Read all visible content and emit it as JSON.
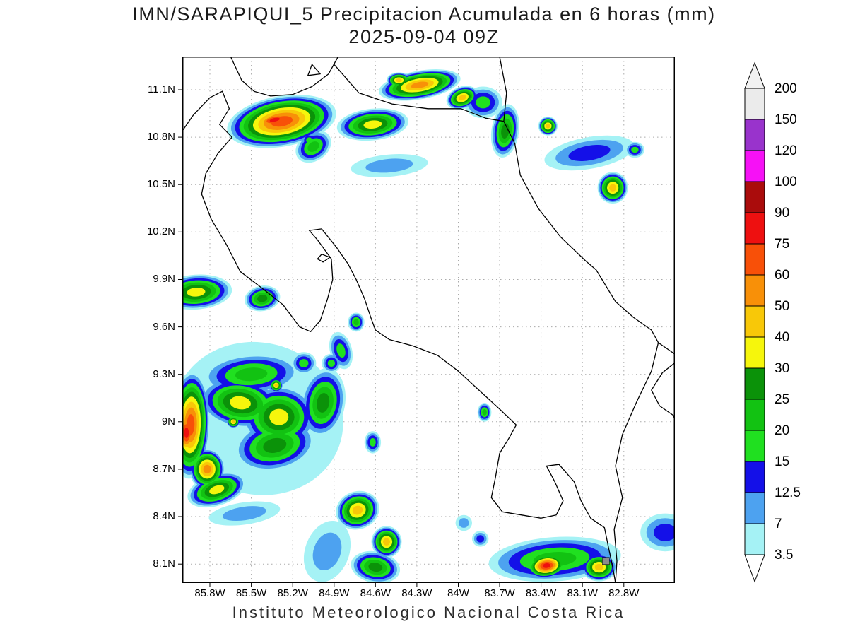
{
  "chart_data": {
    "type": "heatmap",
    "title": "IMN/SARAPIQUI_5 Precipitacion Acumulada en 6 horas (mm)",
    "subtitle": "2025-09-04 09Z",
    "model": "IMN/SARAPIQUI_5",
    "variable": "Precipitacion Acumulada en 6 horas",
    "units": "mm",
    "valid_time": "2025-09-04 09Z",
    "footer": "Instituto Meteorologico Nacional Costa Rica",
    "grid": {
      "show": true,
      "style": "dotted"
    },
    "legend_position": "right",
    "x_axis": {
      "ticks": [
        "85.8W",
        "85.5W",
        "85.2W",
        "84.9W",
        "84.6W",
        "84.3W",
        "84W",
        "83.7W",
        "83.4W",
        "83.1W",
        "82.8W"
      ],
      "values": [
        -85.8,
        -85.5,
        -85.2,
        -84.9,
        -84.6,
        -84.3,
        -84.0,
        -83.7,
        -83.4,
        -83.1,
        -82.8
      ],
      "range": [
        -86.0,
        -82.43
      ]
    },
    "y_axis": {
      "ticks": [
        "11.1N",
        "10.8N",
        "10.5N",
        "10.2N",
        "9.9N",
        "9.6N",
        "9.3N",
        "9N",
        "8.7N",
        "8.4N",
        "8.1N"
      ],
      "values": [
        11.1,
        10.8,
        10.5,
        10.2,
        9.9,
        9.6,
        9.3,
        9.0,
        8.7,
        8.4,
        8.1
      ],
      "range": [
        7.98,
        11.31
      ]
    },
    "levels": [
      3.5,
      7,
      12.5,
      15,
      20,
      25,
      30,
      40,
      50,
      60,
      75,
      90,
      100,
      120,
      150,
      200
    ],
    "level_labels": [
      "3.5",
      "7",
      "12.5",
      "15",
      "20",
      "25",
      "30",
      "40",
      "50",
      "60",
      "75",
      "90",
      "100",
      "120",
      "150",
      "200"
    ],
    "palette": [
      "#a5f2f5",
      "#4da2f0",
      "#1410e8",
      "#20e020",
      "#12c212",
      "#0b9209",
      "#f6f60c",
      "#f8c808",
      "#f89008",
      "#f85008",
      "#ee1010",
      "#aa0c0c",
      "#f611f6",
      "#9933cc",
      "#ebebeb"
    ],
    "overflow_color": "#f2f2f2",
    "underflow_color": "#ffffff",
    "isolated_cell": {
      "lon": -82.93,
      "lat": 8.12,
      "band": "150-200",
      "color": "#8c8c8c"
    },
    "features": [
      {
        "lon": -85.28,
        "lat": 10.9,
        "rx": 0.4,
        "ry": 0.16,
        "rot": -10,
        "max_mm": 60
      },
      {
        "lon": -85.33,
        "lat": 10.91,
        "rx": 0.2,
        "ry": 0.06,
        "rot": -12,
        "max_mm": 75
      },
      {
        "lon": -85.05,
        "lat": 10.74,
        "rx": 0.14,
        "ry": 0.09,
        "rot": -35,
        "max_mm": 20
      },
      {
        "lon": -85.08,
        "lat": 10.78,
        "rx": 0.06,
        "ry": 0.05,
        "rot": 0,
        "max_mm": 15
      },
      {
        "lon": -84.62,
        "lat": 10.88,
        "rx": 0.26,
        "ry": 0.1,
        "rot": -6,
        "max_mm": 30
      },
      {
        "lon": -84.5,
        "lat": 10.62,
        "rx": 0.28,
        "ry": 0.07,
        "rot": -5,
        "max_mm": 12
      },
      {
        "lon": -84.28,
        "lat": 11.13,
        "rx": 0.3,
        "ry": 0.09,
        "rot": -10,
        "max_mm": 50
      },
      {
        "lon": -84.43,
        "lat": 11.16,
        "rx": 0.09,
        "ry": 0.05,
        "rot": 0,
        "max_mm": 40
      },
      {
        "lon": -83.97,
        "lat": 11.05,
        "rx": 0.12,
        "ry": 0.07,
        "rot": -20,
        "max_mm": 40
      },
      {
        "lon": -83.82,
        "lat": 11.02,
        "rx": 0.14,
        "ry": 0.1,
        "rot": 0,
        "max_mm": 15
      },
      {
        "lon": -83.66,
        "lat": 10.84,
        "rx": 0.1,
        "ry": 0.17,
        "rot": 8,
        "max_mm": 25
      },
      {
        "lon": -83.35,
        "lat": 10.87,
        "rx": 0.07,
        "ry": 0.06,
        "rot": 0,
        "max_mm": 40
      },
      {
        "lon": -83.05,
        "lat": 10.7,
        "rx": 0.33,
        "ry": 0.1,
        "rot": -10,
        "max_mm": 13
      },
      {
        "lon": -82.72,
        "lat": 10.72,
        "rx": 0.07,
        "ry": 0.05,
        "rot": 0,
        "max_mm": 15
      },
      {
        "lon": -82.88,
        "lat": 10.48,
        "rx": 0.11,
        "ry": 0.1,
        "rot": 0,
        "max_mm": 40
      },
      {
        "lon": -85.9,
        "lat": 9.82,
        "rx": 0.26,
        "ry": 0.11,
        "rot": -4,
        "max_mm": 30
      },
      {
        "lon": -85.42,
        "lat": 9.78,
        "rx": 0.13,
        "ry": 0.08,
        "rot": -10,
        "max_mm": 25
      },
      {
        "lon": -84.74,
        "lat": 9.63,
        "rx": 0.06,
        "ry": 0.06,
        "rot": 0,
        "max_mm": 20
      },
      {
        "lon": -85.45,
        "lat": 9.02,
        "rx": 0.62,
        "ry": 0.48,
        "rot": 15,
        "max_mm": 5
      },
      {
        "lon": -85.5,
        "lat": 9.3,
        "rx": 0.36,
        "ry": 0.13,
        "rot": -4,
        "max_mm": 20
      },
      {
        "lon": -85.12,
        "lat": 9.37,
        "rx": 0.09,
        "ry": 0.07,
        "rot": 0,
        "max_mm": 15
      },
      {
        "lon": -84.92,
        "lat": 9.37,
        "rx": 0.07,
        "ry": 0.06,
        "rot": 0,
        "max_mm": 15
      },
      {
        "lon": -84.85,
        "lat": 9.45,
        "rx": 0.08,
        "ry": 0.12,
        "rot": -15,
        "max_mm": 15
      },
      {
        "lon": -85.58,
        "lat": 9.12,
        "rx": 0.3,
        "ry": 0.16,
        "rot": 8,
        "max_mm": 30
      },
      {
        "lon": -85.3,
        "lat": 9.03,
        "rx": 0.27,
        "ry": 0.2,
        "rot": 0,
        "max_mm": 30
      },
      {
        "lon": -85.32,
        "lat": 9.23,
        "rx": 0.05,
        "ry": 0.045,
        "rot": 0,
        "max_mm": 40
      },
      {
        "lon": -85.63,
        "lat": 9.0,
        "rx": 0.05,
        "ry": 0.04,
        "rot": 0,
        "max_mm": 40
      },
      {
        "lon": -85.94,
        "lat": 8.98,
        "rx": 0.14,
        "ry": 0.34,
        "rot": 2,
        "max_mm": 60
      },
      {
        "lon": -85.97,
        "lat": 8.93,
        "rx": 0.09,
        "ry": 0.18,
        "rot": 0,
        "max_mm": 75
      },
      {
        "lon": -85.82,
        "lat": 8.7,
        "rx": 0.13,
        "ry": 0.13,
        "rot": 0,
        "max_mm": 50
      },
      {
        "lon": -85.75,
        "lat": 8.57,
        "rx": 0.22,
        "ry": 0.1,
        "rot": -18,
        "max_mm": 30
      },
      {
        "lon": -85.33,
        "lat": 8.85,
        "rx": 0.3,
        "ry": 0.16,
        "rot": -12,
        "max_mm": 25
      },
      {
        "lon": -84.98,
        "lat": 9.12,
        "rx": 0.16,
        "ry": 0.22,
        "rot": 10,
        "max_mm": 25
      },
      {
        "lon": -85.55,
        "lat": 8.42,
        "rx": 0.26,
        "ry": 0.07,
        "rot": -8,
        "max_mm": 7
      },
      {
        "lon": -84.62,
        "lat": 8.87,
        "rx": 0.06,
        "ry": 0.07,
        "rot": 0,
        "max_mm": 15
      },
      {
        "lon": -84.95,
        "lat": 8.18,
        "rx": 0.16,
        "ry": 0.2,
        "rot": 20,
        "max_mm": 12
      },
      {
        "lon": -84.73,
        "lat": 8.44,
        "rx": 0.16,
        "ry": 0.12,
        "rot": -20,
        "max_mm": 40
      },
      {
        "lon": -84.52,
        "lat": 8.24,
        "rx": 0.11,
        "ry": 0.1,
        "rot": 0,
        "max_mm": 40
      },
      {
        "lon": -84.6,
        "lat": 8.08,
        "rx": 0.18,
        "ry": 0.1,
        "rot": 10,
        "max_mm": 25
      },
      {
        "lon": -83.96,
        "lat": 8.36,
        "rx": 0.06,
        "ry": 0.05,
        "rot": 0,
        "max_mm": 7
      },
      {
        "lon": -83.84,
        "lat": 8.26,
        "rx": 0.06,
        "ry": 0.05,
        "rot": 0,
        "max_mm": 13
      },
      {
        "lon": -83.3,
        "lat": 8.13,
        "rx": 0.48,
        "ry": 0.14,
        "rot": -4,
        "max_mm": 20
      },
      {
        "lon": -83.36,
        "lat": 8.09,
        "rx": 0.15,
        "ry": 0.08,
        "rot": -8,
        "max_mm": 80
      },
      {
        "lon": -82.98,
        "lat": 8.08,
        "rx": 0.13,
        "ry": 0.09,
        "rot": 0,
        "max_mm": 40
      },
      {
        "lon": -82.5,
        "lat": 8.3,
        "rx": 0.18,
        "ry": 0.12,
        "rot": 0,
        "max_mm": 13
      },
      {
        "lon": -83.81,
        "lat": 9.06,
        "rx": 0.05,
        "ry": 0.06,
        "rot": 0,
        "max_mm": 20
      }
    ]
  }
}
